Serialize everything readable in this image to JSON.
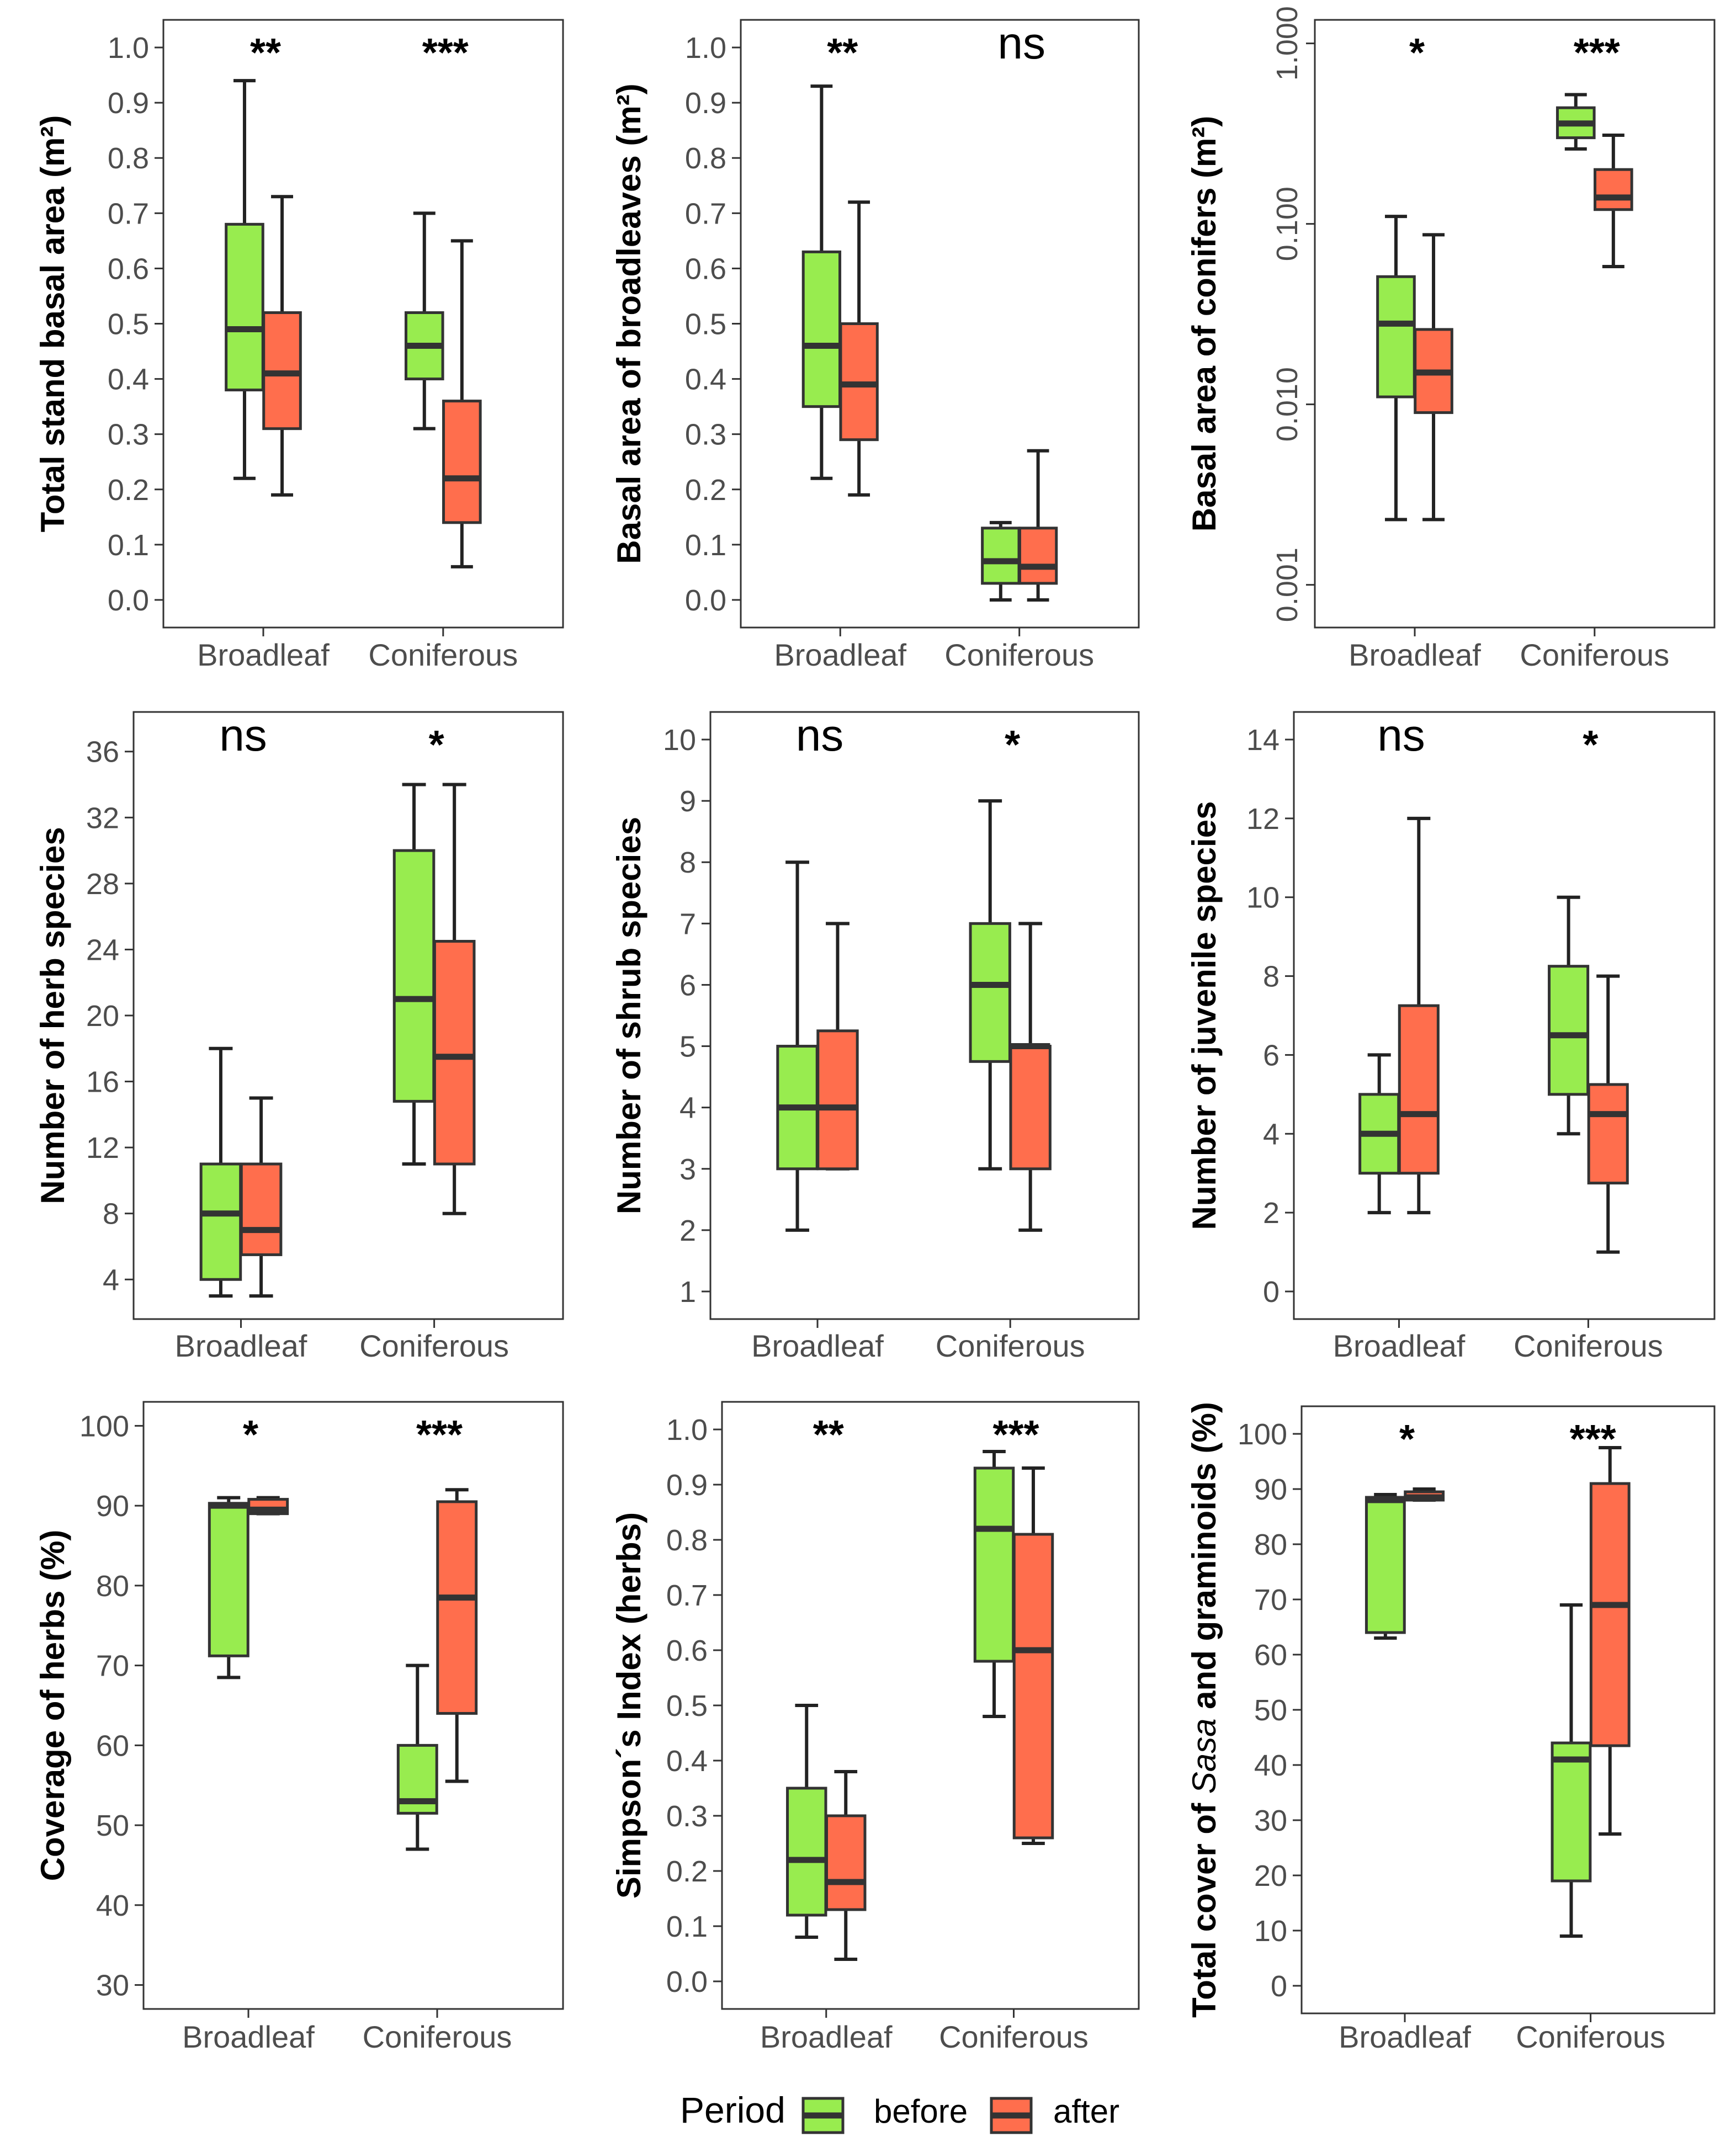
{
  "colors": {
    "before": "#98ec4f",
    "after": "#ff6e4d"
  },
  "legend": {
    "title": "Period",
    "items": [
      {
        "key": "before",
        "label": "before"
      },
      {
        "key": "after",
        "label": "after"
      }
    ]
  },
  "chart_data": [
    {
      "id": "total-stand-basal-area",
      "type": "boxplot",
      "ylabel": "Total stand basal area (m²)",
      "categories": [
        "Broadleaf",
        "Coniferous"
      ],
      "scale": "linear",
      "ylim": [
        -0.05,
        1.05
      ],
      "yticks": [
        "0.0",
        "0.1",
        "0.2",
        "0.3",
        "0.4",
        "0.5",
        "0.6",
        "0.7",
        "0.8",
        "0.9",
        "1.0"
      ],
      "significance": [
        "**",
        "***"
      ],
      "boxes": [
        [
          {
            "period": "before",
            "min": 0.22,
            "q1": 0.38,
            "median": 0.49,
            "q3": 0.68,
            "max": 0.94
          },
          {
            "period": "after",
            "min": 0.19,
            "q1": 0.31,
            "median": 0.41,
            "q3": 0.52,
            "max": 0.73
          }
        ],
        [
          {
            "period": "before",
            "min": 0.31,
            "q1": 0.4,
            "median": 0.46,
            "q3": 0.52,
            "max": 0.7
          },
          {
            "period": "after",
            "min": 0.06,
            "q1": 0.14,
            "median": 0.22,
            "q3": 0.36,
            "max": 0.65
          }
        ]
      ]
    },
    {
      "id": "basal-area-broadleaves",
      "type": "boxplot",
      "ylabel": "Basal area of broadleaves (m²)",
      "categories": [
        "Broadleaf",
        "Coniferous"
      ],
      "scale": "linear",
      "ylim": [
        -0.05,
        1.05
      ],
      "yticks": [
        "0.0",
        "0.1",
        "0.2",
        "0.3",
        "0.4",
        "0.5",
        "0.6",
        "0.7",
        "0.8",
        "0.9",
        "1.0"
      ],
      "significance": [
        "**",
        "ns"
      ],
      "boxes": [
        [
          {
            "period": "before",
            "min": 0.22,
            "q1": 0.35,
            "median": 0.46,
            "q3": 0.63,
            "max": 0.93
          },
          {
            "period": "after",
            "min": 0.19,
            "q1": 0.29,
            "median": 0.39,
            "q3": 0.5,
            "max": 0.72
          }
        ],
        [
          {
            "period": "before",
            "min": 0.0,
            "q1": 0.03,
            "median": 0.07,
            "q3": 0.13,
            "max": 0.14
          },
          {
            "period": "after",
            "min": 0.0,
            "q1": 0.03,
            "median": 0.06,
            "q3": 0.13,
            "max": 0.27
          }
        ]
      ]
    },
    {
      "id": "basal-area-conifers",
      "type": "boxplot",
      "ylabel": "Basal area of conifers (m²)",
      "categories": [
        "Broadleaf",
        "Coniferous"
      ],
      "scale": "log10",
      "ylim": [
        0.00058,
        1.35
      ],
      "yticks": [
        "0.001",
        "0.010",
        "0.100",
        "1.000"
      ],
      "significance": [
        "*",
        "***"
      ],
      "boxes": [
        [
          {
            "period": "before",
            "min": 0.0023,
            "q1": 0.011,
            "median": 0.028,
            "q3": 0.051,
            "max": 0.11
          },
          {
            "period": "after",
            "min": 0.0023,
            "q1": 0.009,
            "median": 0.015,
            "q3": 0.026,
            "max": 0.087
          }
        ],
        [
          {
            "period": "before",
            "min": 0.26,
            "q1": 0.3,
            "median": 0.36,
            "q3": 0.44,
            "max": 0.52
          },
          {
            "period": "after",
            "min": 0.058,
            "q1": 0.12,
            "median": 0.14,
            "q3": 0.2,
            "max": 0.31
          }
        ]
      ]
    },
    {
      "id": "number-herb-species",
      "type": "boxplot",
      "ylabel": "Number of herb species",
      "categories": [
        "Broadleaf",
        "Coniferous"
      ],
      "scale": "linear",
      "ylim": [
        1.6,
        38.4
      ],
      "yticks": [
        "4",
        "8",
        "12",
        "16",
        "20",
        "24",
        "28",
        "32",
        "36"
      ],
      "significance": [
        "ns",
        "*"
      ],
      "boxes": [
        [
          {
            "period": "before",
            "min": 3,
            "q1": 4,
            "median": 8,
            "q3": 11,
            "max": 18
          },
          {
            "period": "after",
            "min": 3,
            "q1": 5.5,
            "median": 7,
            "q3": 11,
            "max": 15
          }
        ],
        [
          {
            "period": "before",
            "min": 11,
            "q1": 14.8,
            "median": 21,
            "q3": 30,
            "max": 34
          },
          {
            "period": "after",
            "min": 8,
            "q1": 11,
            "median": 17.5,
            "q3": 24.5,
            "max": 34
          }
        ]
      ]
    },
    {
      "id": "number-shrub-species",
      "type": "boxplot",
      "ylabel": "Number of shrub species",
      "categories": [
        "Broadleaf",
        "Coniferous"
      ],
      "scale": "linear",
      "ylim": [
        0.55,
        10.45
      ],
      "yticks": [
        "1",
        "2",
        "3",
        "4",
        "5",
        "6",
        "7",
        "8",
        "9",
        "10"
      ],
      "significance": [
        "ns",
        "*"
      ],
      "boxes": [
        [
          {
            "period": "before",
            "min": 2,
            "q1": 3,
            "median": 4,
            "q3": 5,
            "max": 8
          },
          {
            "period": "after",
            "min": 3,
            "q1": 3,
            "median": 4,
            "q3": 5.25,
            "max": 7
          }
        ],
        [
          {
            "period": "before",
            "min": 3,
            "q1": 4.75,
            "median": 6,
            "q3": 7,
            "max": 9
          },
          {
            "period": "after",
            "min": 2,
            "q1": 3,
            "median": 5,
            "q3": 5,
            "max": 7
          }
        ]
      ]
    },
    {
      "id": "number-juvenile-species",
      "type": "boxplot",
      "ylabel": "Number of juvenile species",
      "categories": [
        "Broadleaf",
        "Coniferous"
      ],
      "scale": "linear",
      "ylim": [
        -0.7,
        14.7
      ],
      "yticks": [
        "0",
        "2",
        "4",
        "6",
        "8",
        "10",
        "12",
        "14"
      ],
      "significance": [
        "ns",
        "*"
      ],
      "boxes": [
        [
          {
            "period": "before",
            "min": 2,
            "q1": 3,
            "median": 4,
            "q3": 5,
            "max": 6
          },
          {
            "period": "after",
            "min": 2,
            "q1": 3,
            "median": 4.5,
            "q3": 7.25,
            "max": 12
          }
        ],
        [
          {
            "period": "before",
            "min": 4,
            "q1": 5,
            "median": 6.5,
            "q3": 8.25,
            "max": 10
          },
          {
            "period": "after",
            "min": 1,
            "q1": 2.75,
            "median": 4.5,
            "q3": 5.25,
            "max": 8
          }
        ]
      ]
    },
    {
      "id": "coverage-of-herbs",
      "type": "boxplot",
      "ylabel": "Coverage of herbs (%)",
      "categories": [
        "Broadleaf",
        "Coniferous"
      ],
      "scale": "linear",
      "ylim": [
        27,
        103
      ],
      "yticks": [
        "30",
        "40",
        "50",
        "60",
        "70",
        "80",
        "90",
        "100"
      ],
      "significance": [
        "*",
        "***"
      ],
      "boxes": [
        [
          {
            "period": "before",
            "min": 68.5,
            "q1": 71.2,
            "median": 90.0,
            "q3": 90.3,
            "max": 91.0
          },
          {
            "period": "after",
            "min": 89.0,
            "q1": 89.0,
            "median": 89.5,
            "q3": 90.8,
            "max": 91.0
          }
        ],
        [
          {
            "period": "before",
            "min": 47.0,
            "q1": 51.5,
            "median": 53.0,
            "q3": 60.0,
            "max": 70.0
          },
          {
            "period": "after",
            "min": 55.5,
            "q1": 64.0,
            "median": 78.5,
            "q3": 90.5,
            "max": 92.0
          }
        ]
      ]
    },
    {
      "id": "simpsons-index-herbs",
      "type": "boxplot",
      "ylabel": "Simpson´s Index (herbs)",
      "categories": [
        "Broadleaf",
        "Coniferous"
      ],
      "scale": "linear",
      "ylim": [
        -0.05,
        1.05
      ],
      "yticks": [
        "0.0",
        "0.1",
        "0.2",
        "0.3",
        "0.4",
        "0.5",
        "0.6",
        "0.7",
        "0.8",
        "0.9",
        "1.0"
      ],
      "significance": [
        "**",
        "***"
      ],
      "boxes": [
        [
          {
            "period": "before",
            "min": 0.08,
            "q1": 0.12,
            "median": 0.22,
            "q3": 0.35,
            "max": 0.5
          },
          {
            "period": "after",
            "min": 0.04,
            "q1": 0.13,
            "median": 0.18,
            "q3": 0.3,
            "max": 0.38
          }
        ],
        [
          {
            "period": "before",
            "min": 0.48,
            "q1": 0.58,
            "median": 0.82,
            "q3": 0.93,
            "max": 0.96
          },
          {
            "period": "after",
            "min": 0.25,
            "q1": 0.26,
            "median": 0.6,
            "q3": 0.81,
            "max": 0.93
          }
        ]
      ]
    },
    {
      "id": "total-cover-sasa-graminoids",
      "type": "boxplot",
      "ylabel": "Total cover of Sasa and graminoids (%)",
      "ylabel_parts": [
        "Total cover of ",
        "Sasa",
        " and graminoids (%)"
      ],
      "categories": [
        "Broadleaf",
        "Coniferous"
      ],
      "scale": "linear",
      "ylim": [
        -5,
        105
      ],
      "yticks": [
        "0",
        "10",
        "20",
        "30",
        "40",
        "50",
        "60",
        "70",
        "80",
        "90",
        "100"
      ],
      "significance": [
        "*",
        "***"
      ],
      "boxes": [
        [
          {
            "period": "before",
            "min": 63,
            "q1": 64,
            "median": 88,
            "q3": 88.5,
            "max": 89
          },
          {
            "period": "after",
            "min": 88,
            "q1": 88,
            "median": 88.5,
            "q3": 89.5,
            "max": 90
          }
        ],
        [
          {
            "period": "before",
            "min": 9,
            "q1": 19,
            "median": 41,
            "q3": 44,
            "max": 69
          },
          {
            "period": "after",
            "min": 27.5,
            "q1": 43.5,
            "median": 69,
            "q3": 91,
            "max": 97.5
          }
        ]
      ]
    }
  ]
}
